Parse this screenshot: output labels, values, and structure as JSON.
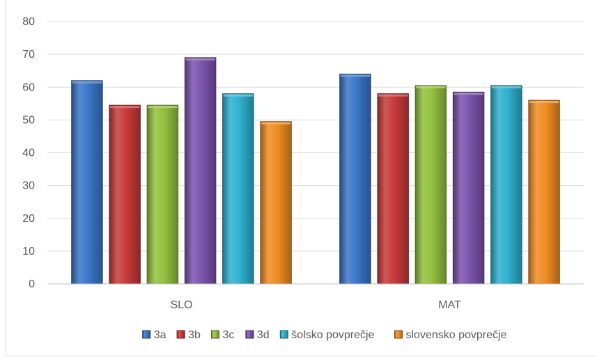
{
  "chart_data": {
    "type": "bar",
    "categories": [
      "SLO",
      "MAT"
    ],
    "series": [
      {
        "name": "3a",
        "values": [
          62,
          64
        ],
        "color": "#3a77c9"
      },
      {
        "name": "3b",
        "values": [
          54.5,
          58
        ],
        "color": "#c83a3a"
      },
      {
        "name": "3c",
        "values": [
          54.5,
          60.5
        ],
        "color": "#93c13e"
      },
      {
        "name": "3d",
        "values": [
          69,
          58.5
        ],
        "color": "#7c53ad"
      },
      {
        "name": "šolsko povprečje",
        "values": [
          58,
          60.5
        ],
        "color": "#2eb1cf"
      },
      {
        "name": "slovensko povprečje",
        "values": [
          49.5,
          56
        ],
        "color": "#f08c22"
      }
    ],
    "yticks": [
      "0",
      "10",
      "20",
      "30",
      "40",
      "50",
      "60",
      "70",
      "80"
    ],
    "ylim": [
      0,
      80
    ],
    "grid": true,
    "legend_position": "bottom",
    "title": "",
    "xlabel": "",
    "ylabel": ""
  }
}
